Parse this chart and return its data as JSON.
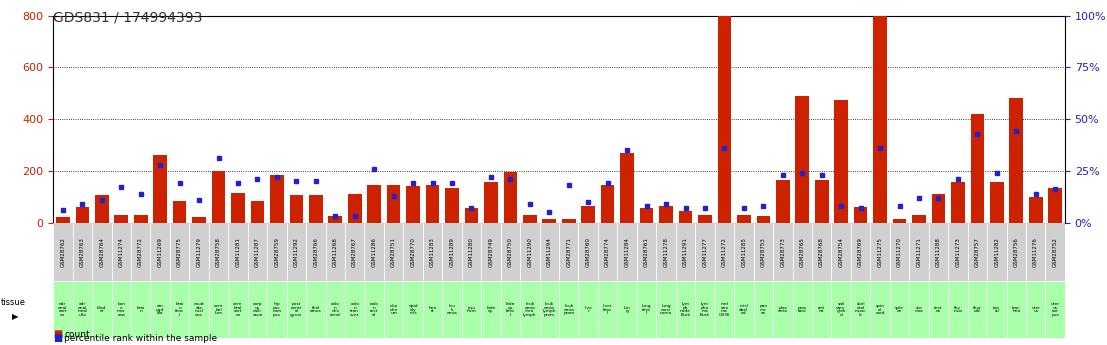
{
  "title": "GDS831 / 174994393",
  "gsm_ids": [
    "GSM28762",
    "GSM28763",
    "GSM28764",
    "GSM11274",
    "GSM28772",
    "GSM11269",
    "GSM28775",
    "GSM11279",
    "GSM28758",
    "GSM11281",
    "GSM11287",
    "GSM28759",
    "GSM11292",
    "GSM28766",
    "GSM11268",
    "GSM28767",
    "GSM11286",
    "GSM28751",
    "GSM28770",
    "GSM11283",
    "GSM11289",
    "GSM11280",
    "GSM28749",
    "GSM28750",
    "GSM11290",
    "GSM11294",
    "GSM28771",
    "GSM28760",
    "GSM28774",
    "GSM11284",
    "GSM28761",
    "GSM11278",
    "GSM11291",
    "GSM11277",
    "GSM11272",
    "GSM11285",
    "GSM28753",
    "GSM28773",
    "GSM28765",
    "GSM28768",
    "GSM28754",
    "GSM28769",
    "GSM11275",
    "GSM11270",
    "GSM11271",
    "GSM11288",
    "GSM11273",
    "GSM28757",
    "GSM11282",
    "GSM28756",
    "GSM11276",
    "GSM28752"
  ],
  "tissues": [
    "adr\nenal\ncort\nex",
    "adr\nenal\nmed\nulla",
    "blad\ner",
    "bon\ne\nmar\nrow",
    "brai\nn",
    "am\nygd\nala",
    "brai\nn\nfeta\nl",
    "caud\nate\nnucl\neus",
    "cere\nbel\nlum",
    "cere\nbral\ncort\nex",
    "corp\nus\ncalli\nosun",
    "hip\npoc\ncam\npus",
    "post\ncentr\nal\ngyrus",
    "thal\namus",
    "colo\nn\ndes\ncend",
    "colo\nn\ntran\nsver",
    "colo\nn\nrect\nal",
    "duo\nden\num",
    "epid\nidy\nmis",
    "hea\nrt",
    "leu\nk\nemia",
    "jeju\nnum",
    "kidn\ney",
    "kidn\ney\nfeta\nl",
    "leuk\nemia\nchro\nlymph",
    "leuk\nemia\nlymph\nprom",
    "leuk\nemia\nprom",
    "live\nr",
    "liver\nfeta\nl",
    "lun\ng",
    "lung\nfeta\nl",
    "lung\ncarci\nnoma",
    "lym\nph\nnode\nBurk",
    "lym\npho\nma\nBurk",
    "mel\nano\nma\nG336",
    "misl\nabel\ned",
    "pan\ncre\nas",
    "plac\nenta",
    "pros\ntate",
    "reti\nna",
    "sali\nvary\nglan\nd",
    "skel\netal\nmusc\nle",
    "spin\nal\ncord",
    "sple\nen",
    "sto\nmac",
    "test\nes",
    "thy\nmus",
    "thyr\noid",
    "ton\nsil",
    "trac\nhea",
    "uter\nus",
    "uter\nus\ncor\npus"
  ],
  "counts": [
    20,
    60,
    105,
    30,
    30,
    260,
    85,
    20,
    200,
    115,
    85,
    185,
    105,
    105,
    25,
    110,
    145,
    145,
    140,
    145,
    135,
    55,
    155,
    195,
    30,
    15,
    15,
    65,
    145,
    270,
    55,
    65,
    45,
    30,
    800,
    30,
    25,
    165,
    490,
    165,
    475,
    60,
    800,
    15,
    30,
    110,
    155,
    420,
    155,
    480,
    100,
    135
  ],
  "percentiles_pct": [
    6,
    9,
    11,
    17,
    14,
    28,
    19,
    11,
    31,
    19,
    21,
    22,
    20,
    20,
    3,
    3,
    26,
    13,
    19,
    19,
    19,
    7,
    22,
    21,
    9,
    5,
    18,
    10,
    19,
    35,
    8,
    9,
    7,
    7,
    36,
    7,
    8,
    23,
    24,
    23,
    8,
    7,
    36,
    8,
    12,
    12,
    21,
    43,
    24,
    44,
    14,
    16
  ],
  "ylim_left": [
    0,
    800
  ],
  "ylim_right": [
    0,
    100
  ],
  "yticks_left": [
    0,
    200,
    400,
    600,
    800
  ],
  "yticks_right": [
    0,
    25,
    50,
    75,
    100
  ],
  "bar_color": "#cc2200",
  "dot_color": "#2222cc",
  "left_axis_color": "#cc2200",
  "right_axis_color": "#2222cc",
  "gsm_bg_color": "#d0d0d0",
  "tissue_bg_color": "#aaffaa"
}
